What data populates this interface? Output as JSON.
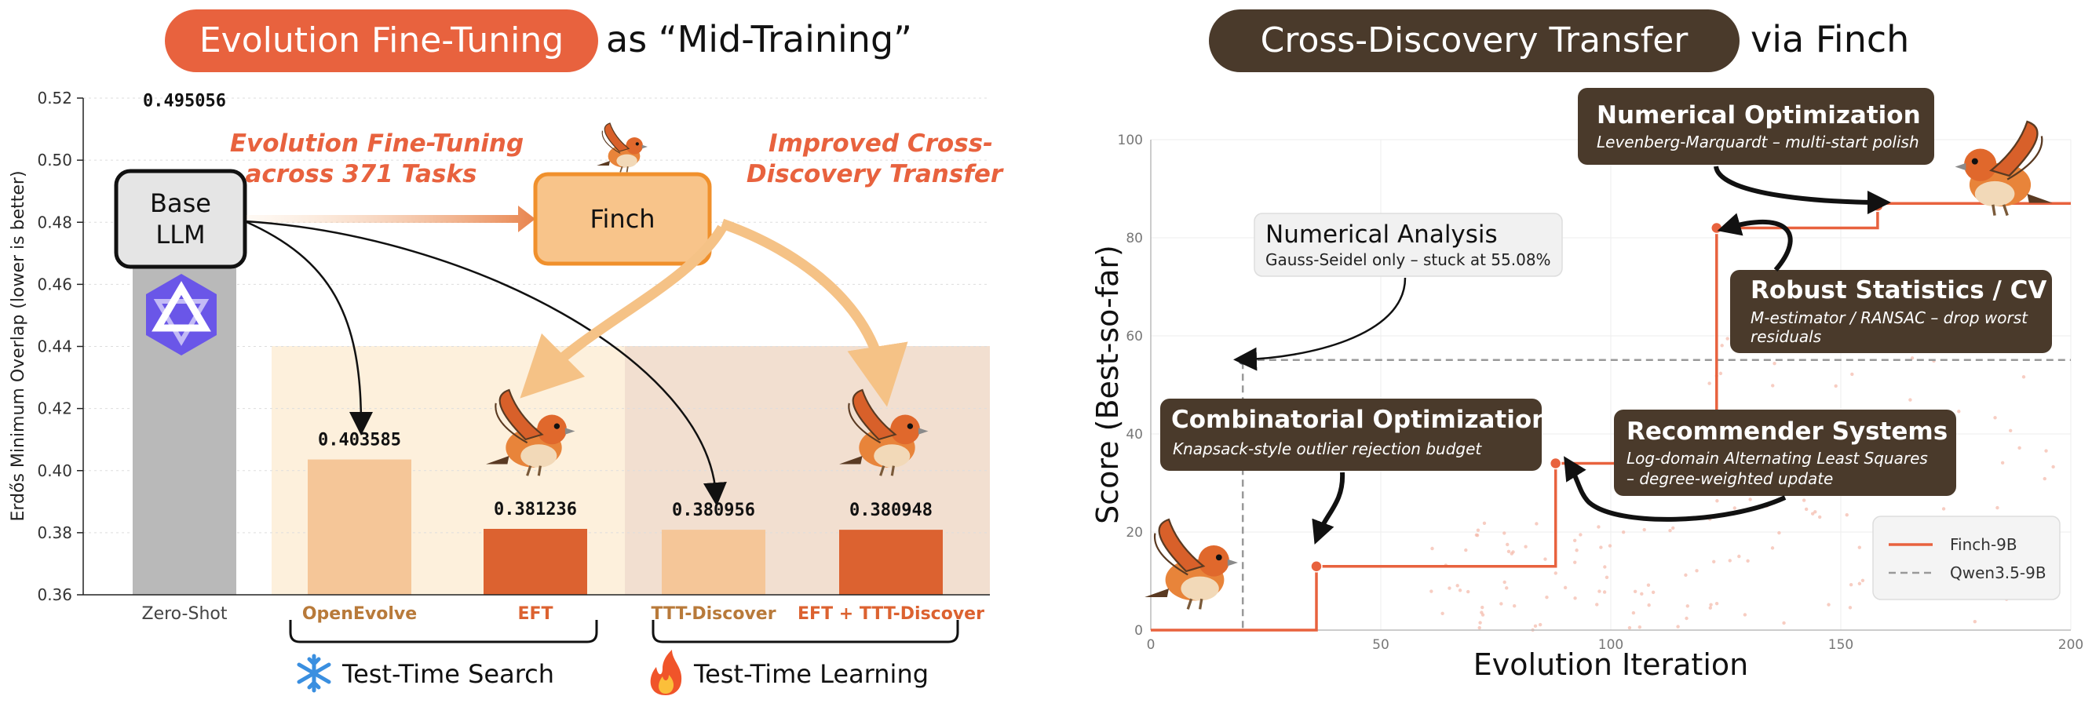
{
  "left": {
    "title_highlight": "Evolution Fine-Tuning",
    "title_rest": "as “Mid-Training”",
    "colors": {
      "accent": "#e8623e",
      "light_bar": "#f5c698",
      "dark_bar": "#dc6230",
      "gray_bar": "#b9b9b9",
      "search_bg": "#fdf0dc",
      "learning_bg": "#f2dfd0"
    },
    "annotations": {
      "eft_line1": "Evolution Fine-Tuning",
      "eft_line2": "across 371 Tasks",
      "transfer_line1": "Improved Cross-",
      "transfer_line2": "Discovery Transfer",
      "base_line1": "Base",
      "base_line2": "LLM",
      "finch": "Finch"
    },
    "groups": {
      "search": "Test-Time Search",
      "learning": "Test-Time Learning"
    },
    "icons": {
      "base_logo": "qwen-logo-icon",
      "search": "snowflake-icon",
      "learning": "fire-icon",
      "bird": "finch-bird-icon"
    }
  },
  "right": {
    "title_highlight": "Cross-Discovery Transfer",
    "title_rest": "via Finch",
    "colors": {
      "finch_line": "#e8623e",
      "qwen_line": "#999999",
      "box": "#4a3a2b"
    },
    "annotations": [
      {
        "title": "Numerical Optimization",
        "subtitle": "Levenberg-Marquardt – multi-start polish"
      },
      {
        "title": "Numerical Analysis",
        "subtitle": "Gauss-Seidel only – stuck at 55.08%"
      },
      {
        "title": "Robust Statistics / CV",
        "subtitle_line1": "M-estimator /  RANSAC – drop worst",
        "subtitle_line2": "residuals"
      },
      {
        "title": "Combinatorial Optimization",
        "subtitle": "Knapsack-style outlier rejection budget"
      },
      {
        "title": "Recommender Systems",
        "subtitle_line1": "Log-domain Alternating Least Squares",
        "subtitle_line2": "– degree-weighted update"
      }
    ]
  },
  "chart_data": [
    {
      "type": "bar",
      "ylabel": "Erdős Minimum Overlap (lower is better)",
      "ylim": [
        0.36,
        0.52
      ],
      "yticks": [
        "0.36",
        "0.38",
        "0.40",
        "0.42",
        "0.44",
        "0.46",
        "0.48",
        "0.50",
        "0.52"
      ],
      "categories": [
        "Zero-Shot",
        "OpenEvolve",
        "EFT",
        "TTT-Discover",
        "EFT + TTT-Discover"
      ],
      "values": [
        0.495056,
        0.403585,
        0.381236,
        0.380956,
        0.380948
      ],
      "value_labels": [
        "0.495056",
        "0.403585",
        "0.381236",
        "0.380956",
        "0.380948"
      ],
      "grid": true
    },
    {
      "type": "line",
      "xlabel": "Evolution Iteration",
      "ylabel": "Score (Best-so-far)",
      "xlim": [
        0,
        200
      ],
      "ylim": [
        0,
        100
      ],
      "xticks": [
        "0",
        "50",
        "100",
        "150",
        "200"
      ],
      "yticks": [
        "0",
        "20",
        "40",
        "60",
        "80",
        "100"
      ],
      "legend_position": "bottom-right",
      "grid": true,
      "series": [
        {
          "name": "Finch-9B",
          "step_points": [
            [
              0,
              0
            ],
            [
              36,
              0
            ],
            [
              36,
              13
            ],
            [
              88,
              13
            ],
            [
              88,
              34
            ],
            [
              123,
              34
            ],
            [
              123,
              82
            ],
            [
              158,
              82
            ],
            [
              158,
              87
            ],
            [
              200,
              87
            ]
          ],
          "markers": [
            [
              36,
              13
            ],
            [
              88,
              34
            ],
            [
              123,
              82
            ],
            [
              158,
              86.5
            ]
          ]
        },
        {
          "name": "Qwen3.5-9B",
          "step_points": [
            [
              0,
              0
            ],
            [
              20,
              0
            ],
            [
              20,
              55.08
            ],
            [
              200,
              55.08
            ]
          ],
          "markers": [
            [
              20,
              55.08
            ]
          ]
        }
      ]
    }
  ]
}
